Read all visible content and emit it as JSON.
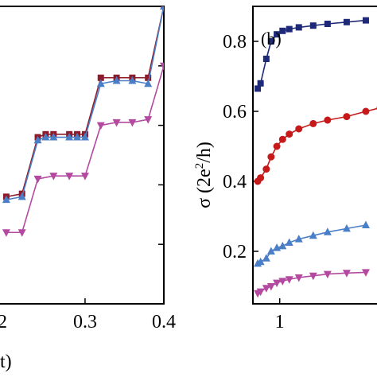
{
  "chart_data": [
    {
      "type": "line",
      "title": "",
      "xlabel": "t)",
      "ylabel": "",
      "xlim": [
        0.19,
        0.4
      ],
      "ylim": [
        0.0,
        1.0
      ],
      "xticks": [
        0.3,
        0.4
      ],
      "xtick_labels": [
        "0.3",
        "0.4"
      ],
      "partial_left_tick_label": "2",
      "series": [
        {
          "marker": "square",
          "color": "#8c1c2c",
          "x": [
            0.2,
            0.22,
            0.24,
            0.25,
            0.26,
            0.28,
            0.29,
            0.3,
            0.32,
            0.34,
            0.36,
            0.38,
            0.4
          ],
          "y": [
            0.36,
            0.37,
            0.56,
            0.57,
            0.57,
            0.57,
            0.57,
            0.57,
            0.76,
            0.76,
            0.76,
            0.76,
            1.0
          ]
        },
        {
          "marker": "triangle-up",
          "color": "#4a7fc8",
          "x": [
            0.2,
            0.22,
            0.24,
            0.25,
            0.26,
            0.28,
            0.29,
            0.3,
            0.32,
            0.34,
            0.36,
            0.38,
            0.4
          ],
          "y": [
            0.35,
            0.36,
            0.55,
            0.56,
            0.56,
            0.56,
            0.56,
            0.56,
            0.74,
            0.75,
            0.75,
            0.74,
            1.0
          ]
        },
        {
          "marker": "triangle-down",
          "color": "#b44aa0",
          "x": [
            0.2,
            0.22,
            0.24,
            0.26,
            0.28,
            0.3,
            0.32,
            0.34,
            0.36,
            0.38,
            0.4
          ],
          "y": [
            0.24,
            0.24,
            0.42,
            0.43,
            0.43,
            0.43,
            0.6,
            0.61,
            0.61,
            0.62,
            0.8
          ]
        }
      ]
    },
    {
      "type": "line",
      "title": "",
      "panel_label": "(b)",
      "xlabel": "",
      "ylabel": "σ (2e²/h)",
      "ylabel_parts": {
        "symbol": "σ (2e",
        "sup": "2",
        "tail": "/h)"
      },
      "xlim": [
        0.72,
        2.05
      ],
      "ylim": [
        0.05,
        0.9
      ],
      "yticks": [
        0.2,
        0.4,
        0.6,
        0.8
      ],
      "ytick_labels": [
        "0.2",
        "0.4",
        "0.6",
        "0.8"
      ],
      "xticks": [
        1.0
      ],
      "xtick_labels": [
        "1"
      ],
      "series": [
        {
          "marker": "square",
          "color": "#1e2a78",
          "x": [
            0.77,
            0.8,
            0.86,
            0.91,
            0.97,
            1.03,
            1.1,
            1.2,
            1.35,
            1.5,
            1.7,
            1.9
          ],
          "y": [
            0.665,
            0.68,
            0.75,
            0.8,
            0.82,
            0.83,
            0.835,
            0.84,
            0.845,
            0.85,
            0.855,
            0.86
          ]
        },
        {
          "marker": "circle",
          "color": "#c61a1a",
          "x": [
            0.77,
            0.8,
            0.86,
            0.91,
            0.97,
            1.03,
            1.1,
            1.2,
            1.35,
            1.5,
            1.7,
            1.9,
            2.05
          ],
          "y": [
            0.4,
            0.41,
            0.435,
            0.47,
            0.5,
            0.52,
            0.535,
            0.55,
            0.565,
            0.575,
            0.585,
            0.6,
            0.61
          ]
        },
        {
          "marker": "triangle-up",
          "color": "#4a7fc8",
          "x": [
            0.77,
            0.8,
            0.86,
            0.91,
            0.97,
            1.03,
            1.1,
            1.2,
            1.35,
            1.5,
            1.7,
            1.9
          ],
          "y": [
            0.165,
            0.17,
            0.18,
            0.2,
            0.21,
            0.215,
            0.225,
            0.235,
            0.245,
            0.255,
            0.265,
            0.275
          ]
        },
        {
          "marker": "triangle-down",
          "color": "#b44aa0",
          "x": [
            0.77,
            0.8,
            0.86,
            0.91,
            0.97,
            1.03,
            1.1,
            1.2,
            1.35,
            1.5,
            1.7,
            1.9
          ],
          "y": [
            0.08,
            0.085,
            0.095,
            0.1,
            0.11,
            0.115,
            0.12,
            0.125,
            0.13,
            0.135,
            0.138,
            0.14
          ]
        }
      ]
    }
  ]
}
